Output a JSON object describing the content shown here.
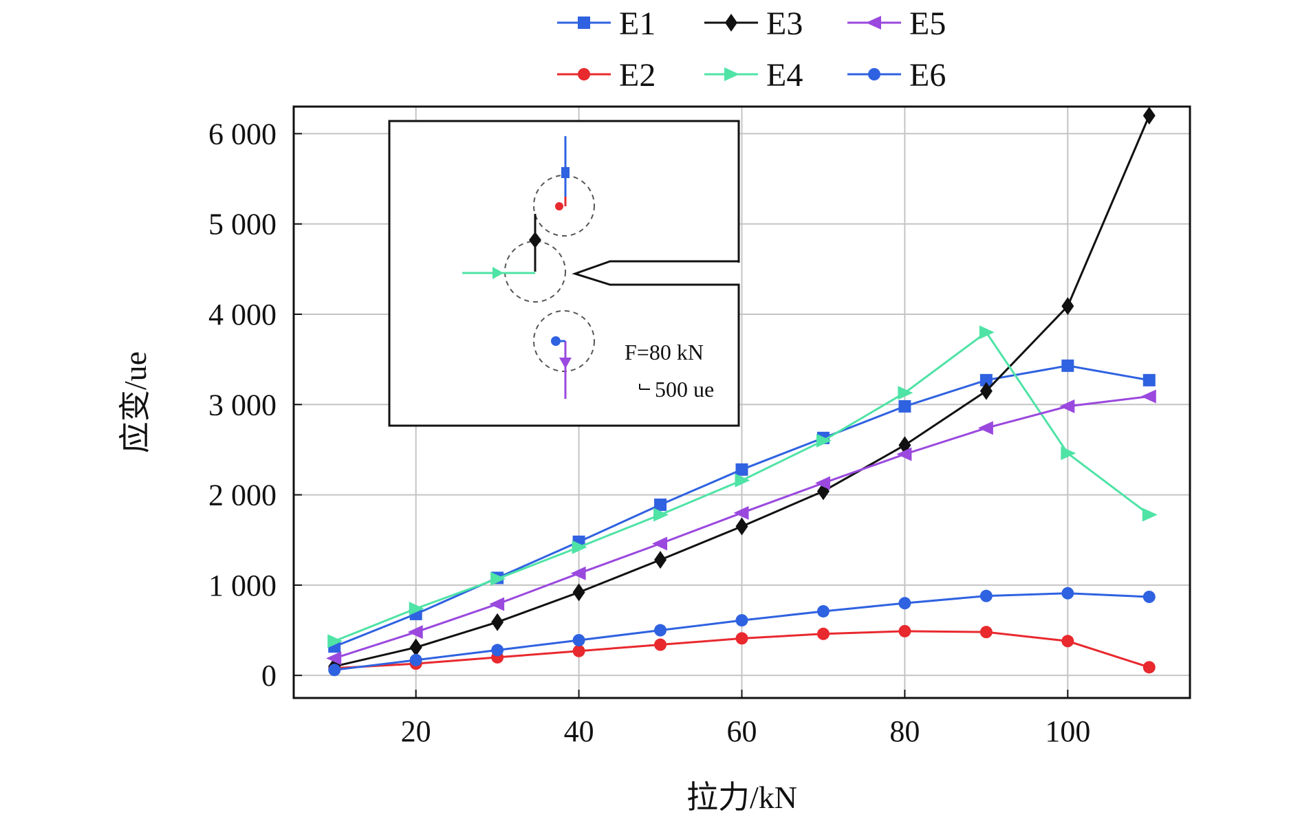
{
  "chart_data": {
    "type": "line",
    "title": "",
    "xlabel": "拉力/kN",
    "ylabel": "应变/ue",
    "xlim": [
      5,
      115
    ],
    "ylim": [
      -250,
      6300
    ],
    "xticks": [
      20,
      40,
      60,
      80,
      100
    ],
    "xtick_labels": [
      "20",
      "40",
      "60",
      "80",
      "100"
    ],
    "yticks": [
      0,
      1000,
      2000,
      3000,
      4000,
      5000,
      6000
    ],
    "ytick_labels": [
      "0",
      "1 000",
      "2 000",
      "3 000",
      "4 000",
      "5 000",
      "6 000"
    ],
    "grid": true,
    "legend_position": "top",
    "x": [
      10,
      20,
      30,
      40,
      50,
      60,
      70,
      80,
      90,
      100,
      110
    ],
    "series": [
      {
        "name": "E1",
        "color": "#2f62e0",
        "marker": "square",
        "values": [
          320,
          680,
          1080,
          1480,
          1890,
          2280,
          2630,
          2980,
          3270,
          3430,
          3270
        ]
      },
      {
        "name": "E2",
        "color": "#e8292e",
        "marker": "circle",
        "values": [
          80,
          130,
          200,
          270,
          340,
          410,
          460,
          490,
          480,
          380,
          90
        ]
      },
      {
        "name": "E3",
        "color": "#111111",
        "marker": "diamond",
        "values": [
          100,
          310,
          590,
          920,
          1280,
          1650,
          2040,
          2550,
          3150,
          4090,
          6200
        ]
      },
      {
        "name": "E4",
        "color": "#4fe3a6",
        "marker": "triangle-right",
        "values": [
          380,
          740,
          1070,
          1420,
          1780,
          2160,
          2600,
          3130,
          3800,
          2460,
          1780
        ]
      },
      {
        "name": "E5",
        "color": "#9a48de",
        "marker": "triangle-left",
        "values": [
          190,
          480,
          790,
          1130,
          1460,
          1800,
          2130,
          2450,
          2740,
          2980,
          3090
        ]
      },
      {
        "name": "E6",
        "color": "#2f62e0",
        "marker": "circle",
        "values": [
          60,
          170,
          280,
          390,
          500,
          610,
          710,
          800,
          880,
          910,
          870
        ]
      }
    ],
    "inset": {
      "label_force": "F=80 kN",
      "label_scale": "500 ue"
    }
  }
}
